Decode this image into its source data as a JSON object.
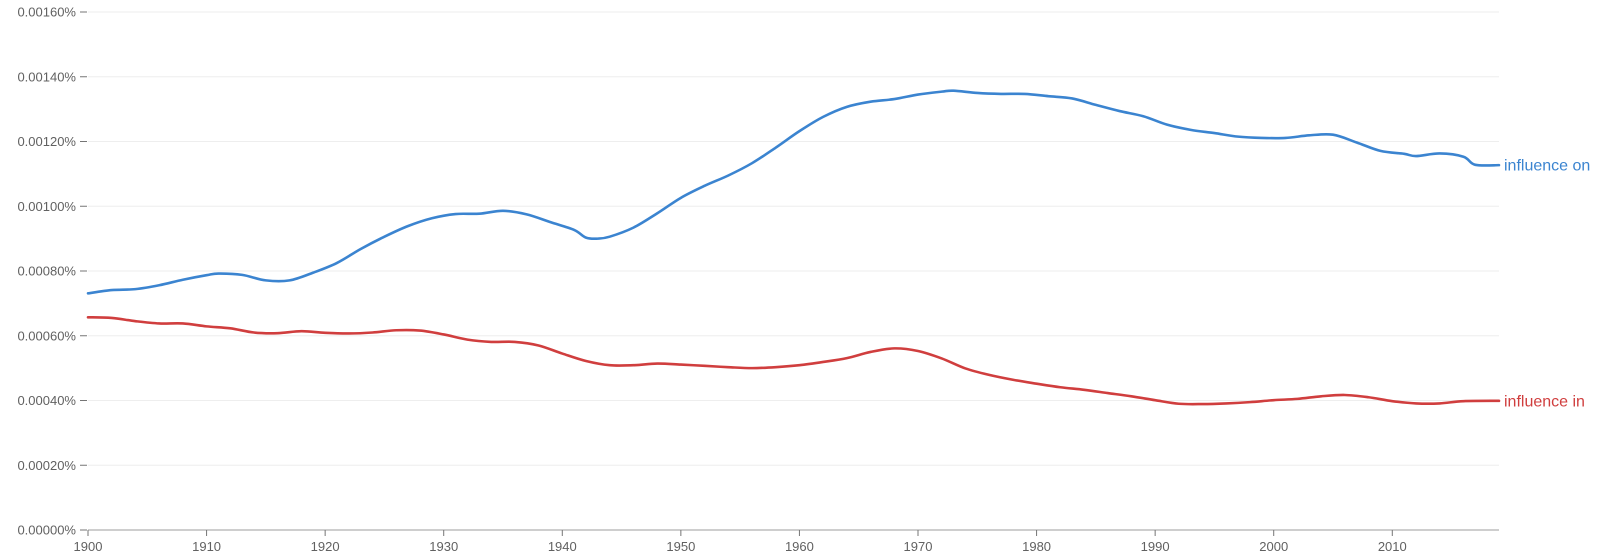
{
  "chart_data": {
    "type": "line",
    "title": "",
    "xlabel": "",
    "ylabel": "",
    "xlim": [
      1900,
      2019
    ],
    "ylim": [
      0,
      0.0016
    ],
    "x_ticks": [
      1900,
      1910,
      1920,
      1930,
      1940,
      1950,
      1960,
      1970,
      1980,
      1990,
      2000,
      2010
    ],
    "y_ticks": [
      {
        "value": 0.0,
        "label": "0.00000%"
      },
      {
        "value": 0.0002,
        "label": "0.00020%"
      },
      {
        "value": 0.0004,
        "label": "0.00040%"
      },
      {
        "value": 0.0006,
        "label": "0.00060%"
      },
      {
        "value": 0.0008,
        "label": "0.00080%"
      },
      {
        "value": 0.001,
        "label": "0.00100%"
      },
      {
        "value": 0.0012,
        "label": "0.00120%"
      },
      {
        "value": 0.0014,
        "label": "0.00140%"
      },
      {
        "value": 0.0016,
        "label": "0.00160%"
      }
    ],
    "grid": true,
    "legend": "end-of-line labels",
    "series": [
      {
        "name": "influence on",
        "color": "#3b84d0",
        "points": [
          [
            1900,
            0.000731
          ],
          [
            1902,
            0.000741
          ],
          [
            1904,
            0.000744
          ],
          [
            1906,
            0.000756
          ],
          [
            1908,
            0.000773
          ],
          [
            1910,
            0.000787
          ],
          [
            1911,
            0.000792
          ],
          [
            1913,
            0.000788
          ],
          [
            1915,
            0.000771
          ],
          [
            1917,
            0.000771
          ],
          [
            1919,
            0.000795
          ],
          [
            1921,
            0.000825
          ],
          [
            1923,
            0.000868
          ],
          [
            1925,
            0.000906
          ],
          [
            1927,
            0.000939
          ],
          [
            1929,
            0.000963
          ],
          [
            1931,
            0.000976
          ],
          [
            1933,
            0.000977
          ],
          [
            1935,
            0.000986
          ],
          [
            1937,
            0.000975
          ],
          [
            1939,
            0.000951
          ],
          [
            1941,
            0.000927
          ],
          [
            1942,
            0.000903
          ],
          [
            1943,
            0.0009
          ],
          [
            1944,
            0.000906
          ],
          [
            1946,
            0.000934
          ],
          [
            1948,
            0.000978
          ],
          [
            1950,
            0.001026
          ],
          [
            1952,
            0.001063
          ],
          [
            1954,
            0.001095
          ],
          [
            1956,
            0.001133
          ],
          [
            1958,
            0.001181
          ],
          [
            1960,
            0.001232
          ],
          [
            1962,
            0.001276
          ],
          [
            1964,
            0.001307
          ],
          [
            1966,
            0.001323
          ],
          [
            1968,
            0.001331
          ],
          [
            1970,
            0.001345
          ],
          [
            1972,
            0.001354
          ],
          [
            1973,
            0.001357
          ],
          [
            1975,
            0.00135
          ],
          [
            1977,
            0.001347
          ],
          [
            1979,
            0.001347
          ],
          [
            1981,
            0.00134
          ],
          [
            1983,
            0.001333
          ],
          [
            1985,
            0.001313
          ],
          [
            1987,
            0.001294
          ],
          [
            1989,
            0.001278
          ],
          [
            1991,
            0.001252
          ],
          [
            1993,
            0.001236
          ],
          [
            1995,
            0.001226
          ],
          [
            1997,
            0.001215
          ],
          [
            1999,
            0.001211
          ],
          [
            2001,
            0.001211
          ],
          [
            2003,
            0.001219
          ],
          [
            2005,
            0.001221
          ],
          [
            2007,
            0.001197
          ],
          [
            2009,
            0.001171
          ],
          [
            2011,
            0.001162
          ],
          [
            2012,
            0.001155
          ],
          [
            2014,
            0.001163
          ],
          [
            2016,
            0.001153
          ],
          [
            2017,
            0.001128
          ],
          [
            2019,
            0.001127
          ]
        ]
      },
      {
        "name": "influence in",
        "color": "#d03e3e",
        "points": [
          [
            1900,
            0.000657
          ],
          [
            1902,
            0.000655
          ],
          [
            1904,
            0.000645
          ],
          [
            1906,
            0.000638
          ],
          [
            1908,
            0.000638
          ],
          [
            1910,
            0.000629
          ],
          [
            1912,
            0.000623
          ],
          [
            1914,
            0.00061
          ],
          [
            1916,
            0.000608
          ],
          [
            1918,
            0.000614
          ],
          [
            1920,
            0.000609
          ],
          [
            1922,
            0.000607
          ],
          [
            1924,
            0.00061
          ],
          [
            1926,
            0.000617
          ],
          [
            1928,
            0.000616
          ],
          [
            1930,
            0.000604
          ],
          [
            1932,
            0.000588
          ],
          [
            1934,
            0.000581
          ],
          [
            1936,
            0.000581
          ],
          [
            1938,
            0.00057
          ],
          [
            1940,
            0.000545
          ],
          [
            1942,
            0.000522
          ],
          [
            1944,
            0.000509
          ],
          [
            1946,
            0.000509
          ],
          [
            1948,
            0.000514
          ],
          [
            1950,
            0.000511
          ],
          [
            1952,
            0.000507
          ],
          [
            1954,
            0.000503
          ],
          [
            1956,
            0.0005
          ],
          [
            1958,
            0.000503
          ],
          [
            1960,
            0.000509
          ],
          [
            1962,
            0.000519
          ],
          [
            1964,
            0.000531
          ],
          [
            1966,
            0.00055
          ],
          [
            1968,
            0.000561
          ],
          [
            1970,
            0.000553
          ],
          [
            1972,
            0.00053
          ],
          [
            1974,
            0.000499
          ],
          [
            1976,
            0.000479
          ],
          [
            1978,
            0.000464
          ],
          [
            1980,
            0.000452
          ],
          [
            1982,
            0.000441
          ],
          [
            1984,
            0.000433
          ],
          [
            1986,
            0.000423
          ],
          [
            1988,
            0.000413
          ],
          [
            1990,
            0.000401
          ],
          [
            1992,
            0.00039
          ],
          [
            1994,
            0.000389
          ],
          [
            1996,
            0.000391
          ],
          [
            1998,
            0.000395
          ],
          [
            2000,
            0.000401
          ],
          [
            2002,
            0.000405
          ],
          [
            2004,
            0.000413
          ],
          [
            2006,
            0.000417
          ],
          [
            2008,
            0.00041
          ],
          [
            2010,
            0.000398
          ],
          [
            2012,
            0.000391
          ],
          [
            2014,
            0.000391
          ],
          [
            2016,
            0.000398
          ],
          [
            2019,
            0.000399
          ]
        ]
      }
    ]
  }
}
